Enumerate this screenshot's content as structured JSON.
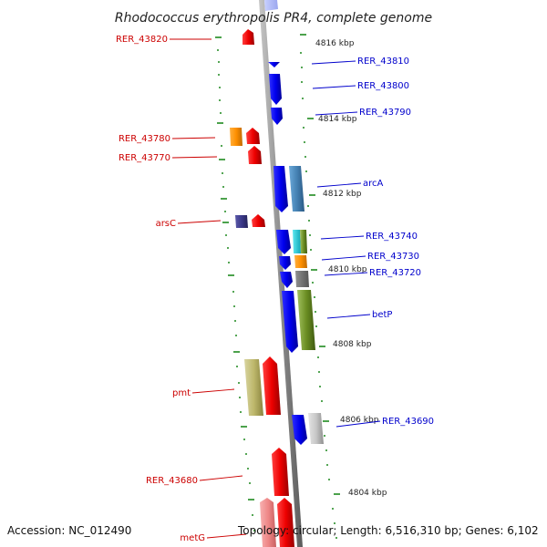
{
  "title": "Rhodococcus erythropolis PR4, complete genome",
  "footer": {
    "accession": "Accession: NC_012490",
    "topology": "Topology: circular; Length: 6,516,310 bp; Genes: 6,102"
  },
  "colors": {
    "backbone": "#8c8c8c",
    "forward_label": "#0000cc",
    "reverse_label": "#cc0000",
    "tick": "#1f8a1f"
  },
  "scale_labels": [
    "4816 kbp",
    "4814 kbp",
    "4812 kbp",
    "4810 kbp",
    "4808 kbp",
    "4806 kbp",
    "4804 kbp"
  ],
  "genes": [
    {
      "name": "RER_43820",
      "strand": "reverse"
    },
    {
      "name": "RER_43810",
      "strand": "forward"
    },
    {
      "name": "RER_43800",
      "strand": "forward"
    },
    {
      "name": "RER_43790",
      "strand": "forward"
    },
    {
      "name": "RER_43780",
      "strand": "reverse"
    },
    {
      "name": "RER_43770",
      "strand": "reverse"
    },
    {
      "name": "arcA",
      "strand": "forward"
    },
    {
      "name": "arsC",
      "strand": "reverse"
    },
    {
      "name": "RER_43740",
      "strand": "forward"
    },
    {
      "name": "RER_43730",
      "strand": "forward"
    },
    {
      "name": "RER_43720",
      "strand": "forward"
    },
    {
      "name": "betP",
      "strand": "forward"
    },
    {
      "name": "pmt",
      "strand": "reverse"
    },
    {
      "name": "RER_43690",
      "strand": "forward"
    },
    {
      "name": "RER_43680",
      "strand": "reverse"
    },
    {
      "name": "metG",
      "strand": "reverse"
    }
  ]
}
